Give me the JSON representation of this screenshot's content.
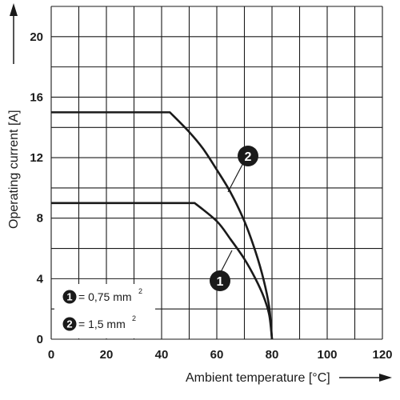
{
  "chart_data": {
    "type": "line",
    "xlabel": "Ambient temperature [°C]",
    "ylabel": "Operating current [A]",
    "xlim": [
      0,
      120
    ],
    "ylim": [
      0,
      22
    ],
    "x_ticks": [
      "0",
      "20",
      "40",
      "60",
      "80",
      "100",
      "120"
    ],
    "y_ticks": [
      "0",
      "4",
      "8",
      "12",
      "16",
      "20"
    ],
    "grid": true,
    "series": [
      {
        "name": "1",
        "x": [
          0,
          52,
          60,
          65,
          70,
          74,
          77,
          79,
          80
        ],
        "y": [
          9,
          9,
          7.8,
          6.6,
          5.3,
          4.0,
          2.8,
          1.6,
          0
        ]
      },
      {
        "name": "2",
        "x": [
          0,
          43,
          50,
          55,
          60,
          65,
          70,
          74,
          77,
          79,
          80
        ],
        "y": [
          15,
          15,
          13.7,
          12.6,
          11.2,
          9.7,
          7.8,
          5.8,
          3.9,
          2.1,
          0
        ]
      }
    ],
    "legend": {
      "placement": "bottom-left",
      "entries": [
        {
          "badge": "1",
          "text": "= 0,75 mm",
          "sup": "2"
        },
        {
          "badge": "2",
          "text": "= 1,5 mm",
          "sup": "2"
        }
      ]
    },
    "callouts": [
      {
        "badge": "1",
        "series": "1"
      },
      {
        "badge": "2",
        "series": "2"
      }
    ]
  }
}
